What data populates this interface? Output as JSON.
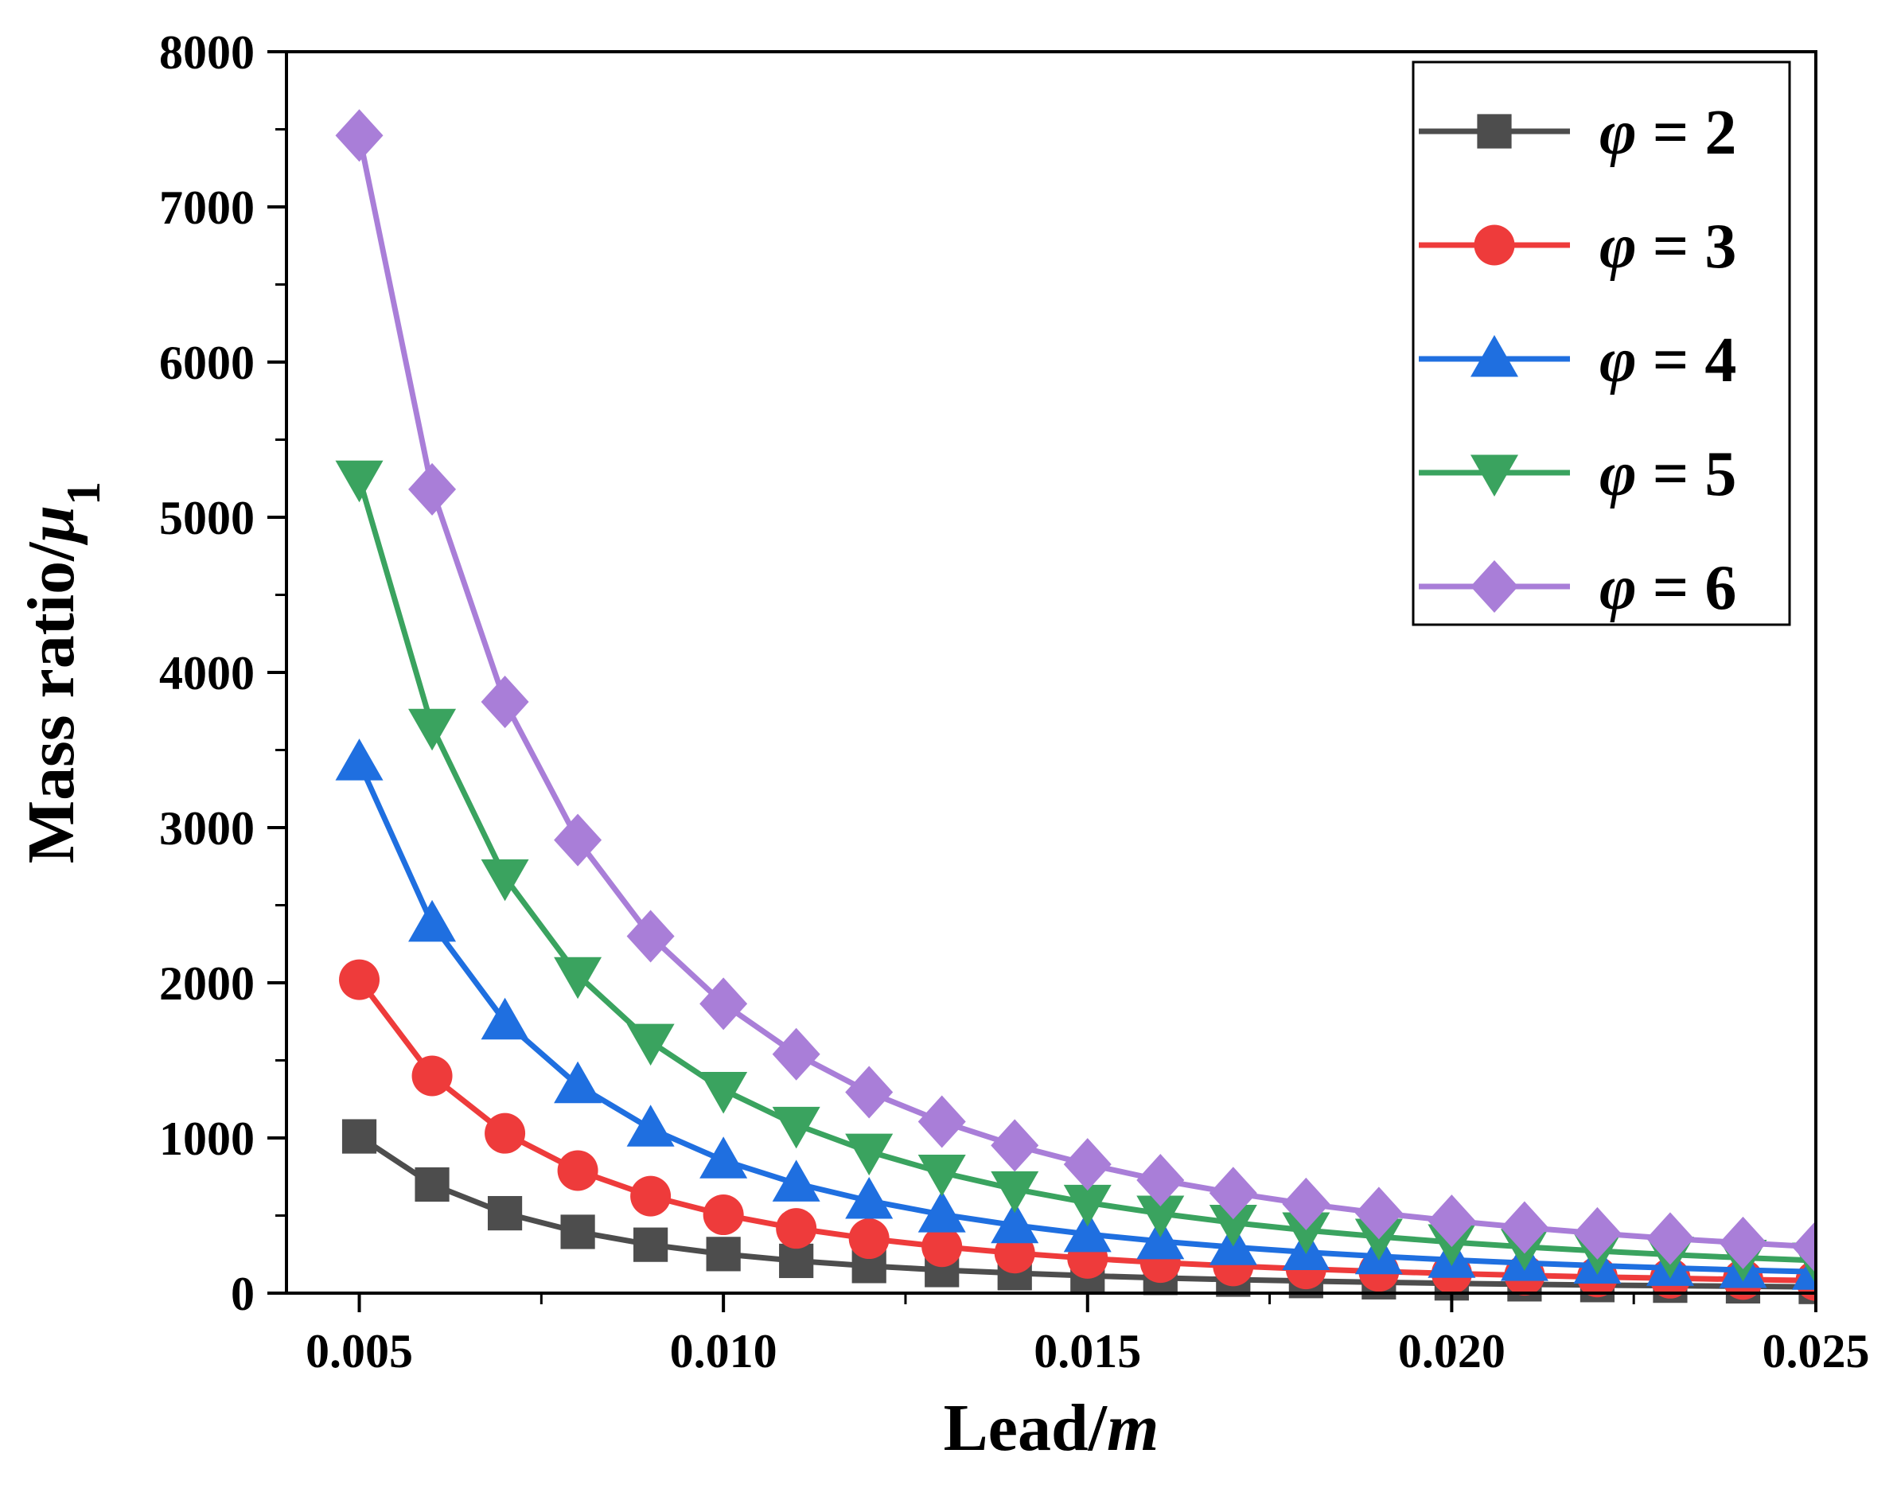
{
  "chart_data": {
    "type": "line",
    "title": "",
    "xlabel": {
      "text": "Lead/",
      "italic": "m"
    },
    "ylabel": {
      "text": "Mass ratio/",
      "italic": "μ",
      "subscript": "1"
    },
    "xlim": [
      0.004,
      0.025
    ],
    "ylim": [
      0,
      8000
    ],
    "xticks": [
      0.005,
      0.01,
      0.015,
      0.02,
      0.025
    ],
    "xtick_labels": [
      "0.005",
      "0.010",
      "0.015",
      "0.020",
      "0.025"
    ],
    "yticks": [
      0,
      1000,
      2000,
      3000,
      4000,
      5000,
      6000,
      7000,
      8000
    ],
    "ytick_labels": [
      "0",
      "1000",
      "2000",
      "3000",
      "4000",
      "5000",
      "6000",
      "7000",
      "8000"
    ],
    "legend_position": "top-right",
    "x": [
      0.005,
      0.006,
      0.007,
      0.008,
      0.009,
      0.01,
      0.011,
      0.012,
      0.013,
      0.014,
      0.015,
      0.016,
      0.017,
      0.018,
      0.019,
      0.02,
      0.021,
      0.022,
      0.023,
      0.024,
      0.025
    ],
    "series": [
      {
        "name": "φ = 2",
        "symbol": "φ",
        "value_label": " = 2",
        "color": "#4d4d4d",
        "marker": "square",
        "values": [
          1010,
          700,
          515,
          395,
          312,
          252,
          208,
          175,
          149,
          129,
          112,
          98,
          87,
          78,
          70,
          63,
          57,
          52,
          48,
          44,
          40
        ]
      },
      {
        "name": "φ = 3",
        "symbol": "φ",
        "value_label": " = 3",
        "color": "#ee3b3b",
        "marker": "circle",
        "values": [
          2020,
          1400,
          1030,
          790,
          625,
          505,
          417,
          351,
          299,
          258,
          224,
          197,
          175,
          156,
          140,
          126,
          115,
          104,
          96,
          88,
          81
        ]
      },
      {
        "name": "φ = 4",
        "symbol": "φ",
        "value_label": " = 4",
        "color": "#1f6fe0",
        "marker": "triangle-up",
        "values": [
          3420,
          2380,
          1750,
          1340,
          1060,
          855,
          706,
          595,
          507,
          437,
          380,
          334,
          296,
          264,
          237,
          214,
          194,
          177,
          162,
          149,
          137
        ]
      },
      {
        "name": "φ = 5",
        "symbol": "φ",
        "value_label": " = 5",
        "color": "#3aa35f",
        "marker": "triangle-down",
        "values": [
          5250,
          3650,
          2680,
          2050,
          1620,
          1310,
          1085,
          912,
          777,
          670,
          583,
          513,
          454,
          405,
          364,
          328,
          298,
          272,
          248,
          228,
          210
        ]
      },
      {
        "name": "φ = 6",
        "symbol": "φ",
        "value_label": " = 6",
        "color": "#a97ed8",
        "marker": "diamond",
        "values": [
          7460,
          5180,
          3810,
          2920,
          2300,
          1865,
          1540,
          1295,
          1105,
          952,
          830,
          728,
          645,
          575,
          516,
          466,
          423,
          385,
          352,
          324,
          298
        ]
      }
    ]
  }
}
